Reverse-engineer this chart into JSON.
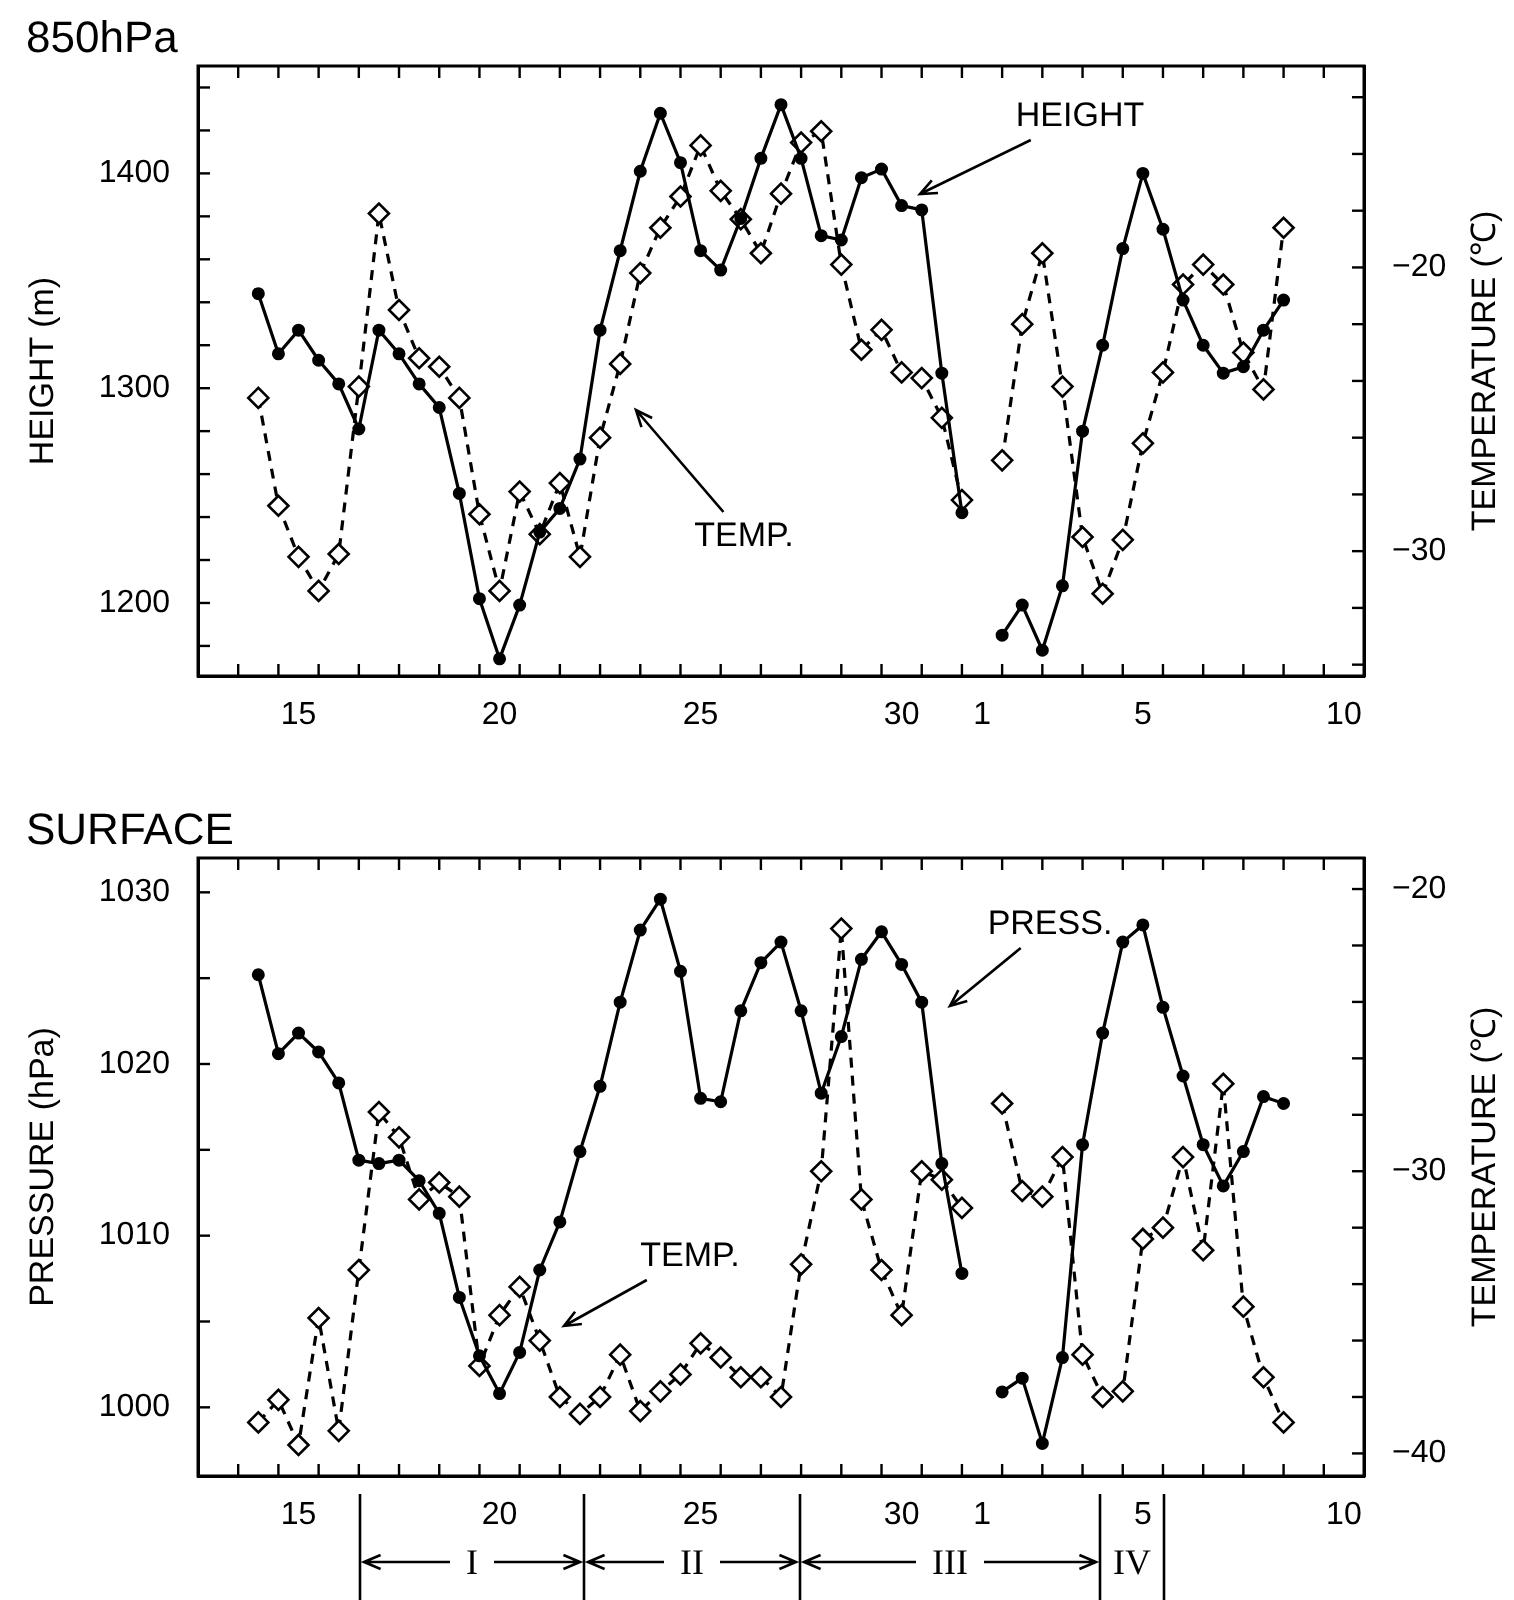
{
  "chart_data": [
    {
      "type": "line",
      "title": "850hPa",
      "ylabel": "HEIGHT (m)",
      "y2label": "TEMPERATURE (℃)",
      "x": [
        "--03-14T12:00",
        "--03-15T00:00",
        "--03-15T12:00",
        "--03-16T00:00",
        "--03-16T12:00",
        "--03-17T00:00",
        "--03-17T12:00",
        "--03-18T00:00",
        "--03-18T12:00",
        "--03-19T00:00",
        "--03-19T12:00",
        "--03-20T00:00",
        "--03-20T12:00",
        "--03-21T00:00",
        "--03-21T12:00",
        "--03-22T00:00",
        "--03-22T12:00",
        "--03-23T00:00",
        "--03-23T12:00",
        "--03-24T00:00",
        "--03-24T12:00",
        "--03-25T00:00",
        "--03-25T12:00",
        "--03-26T00:00",
        "--03-26T12:00",
        "--03-27T00:00",
        "--03-27T12:00",
        "--03-28T00:00",
        "--03-28T12:00",
        "--03-29T00:00",
        "--03-29T12:00",
        "--03-30T00:00",
        "--03-30T12:00",
        "--03-31T00:00",
        "--03-31T12:00",
        "--04-01T00:00",
        "--04-01T12:00",
        "--04-02T00:00",
        "--04-02T12:00",
        "--04-03T00:00",
        "--04-03T12:00",
        "--04-04T00:00",
        "--04-04T12:00",
        "--04-05T00:00",
        "--04-05T12:00",
        "--04-06T00:00",
        "--04-06T12:00",
        "--04-07T00:00",
        "--04-07T12:00",
        "--04-08T00:00",
        "--04-08T12:00",
        "--04-09T00:00"
      ],
      "series": [
        {
          "color": "#000000",
          "marker": "circle",
          "line_style": "solid",
          "values": [
            1344,
            1316,
            1327,
            1313,
            1302,
            1281,
            1327,
            1316,
            1302,
            1291,
            1251,
            1202,
            1174,
            1199,
            1233,
            1244,
            1267,
            1327,
            1364,
            1401,
            1428,
            1405,
            1364,
            1355,
            1379,
            1407,
            1432,
            1407,
            1371,
            1369,
            1398,
            1402,
            1385,
            1383,
            1307,
            1242,
            null,
            1185,
            1199,
            1178,
            1208,
            1280,
            1320,
            1365,
            1400,
            1374,
            1341,
            1320,
            1307,
            1310,
            1327,
            1341
          ]
        },
        {
          "color": "#000000",
          "marker": "diamond",
          "line_style": "dashed",
          "axis": "y2",
          "values": [
            -24.6,
            -28.4,
            -30.2,
            -31.4,
            -30.1,
            -24.2,
            -18.1,
            -21.5,
            -23.2,
            -23.5,
            -24.6,
            -28.7,
            -31.4,
            -27.9,
            -29.4,
            -27.6,
            -30.2,
            -26.0,
            -23.4,
            -20.2,
            -18.6,
            -17.5,
            -15.7,
            -17.3,
            -18.3,
            -19.5,
            -17.4,
            -15.6,
            -15.2,
            -19.9,
            -22.9,
            -22.2,
            -23.7,
            -23.9,
            -25.3,
            -28.2,
            null,
            -26.8,
            -22.0,
            -19.5,
            -24.2,
            -29.5,
            -31.5,
            -29.6,
            -26.2,
            -23.7,
            -20.6,
            -19.9,
            -20.6,
            -23.0,
            -24.3,
            -18.6
          ]
        }
      ],
      "xlim": [
        "--03-13T00:00",
        "--04-11T00:00"
      ],
      "xticks": [
        {
          "value": "--03-15T12:00",
          "label": "15"
        },
        {
          "value": "--03-20T12:00",
          "label": "20"
        },
        {
          "value": "--03-25T12:00",
          "label": "25"
        },
        {
          "value": "--03-30T12:00",
          "label": "30"
        },
        {
          "value": "--04-01T12:00",
          "label": "1"
        },
        {
          "value": "--04-05T12:00",
          "label": "5"
        },
        {
          "value": "--04-10T12:00",
          "label": "10"
        },
        {
          "value": "--03-14T00:00",
          "label": null
        },
        {
          "value": "--03-15T00:00",
          "label": null
        },
        {
          "value": "--03-16T00:00",
          "label": null
        },
        {
          "value": "--03-17T00:00",
          "label": null
        },
        {
          "value": "--03-18T00:00",
          "label": null
        },
        {
          "value": "--03-19T00:00",
          "label": null
        },
        {
          "value": "--03-20T00:00",
          "label": null
        },
        {
          "value": "--03-21T00:00",
          "label": null
        },
        {
          "value": "--03-22T00:00",
          "label": null
        },
        {
          "value": "--03-23T00:00",
          "label": null
        },
        {
          "value": "--03-24T00:00",
          "label": null
        },
        {
          "value": "--03-25T00:00",
          "label": null
        },
        {
          "value": "--03-26T00:00",
          "label": null
        },
        {
          "value": "--03-27T00:00",
          "label": null
        },
        {
          "value": "--03-28T00:00",
          "label": null
        },
        {
          "value": "--03-29T00:00",
          "label": null
        },
        {
          "value": "--03-30T00:00",
          "label": null
        },
        {
          "value": "--03-31T00:00",
          "label": null
        },
        {
          "value": "--04-01T00:00",
          "label": null
        },
        {
          "value": "--04-02T00:00",
          "label": null
        },
        {
          "value": "--04-03T00:00",
          "label": null
        },
        {
          "value": "--04-04T00:00",
          "label": null
        },
        {
          "value": "--04-05T00:00",
          "label": null
        },
        {
          "value": "--04-06T00:00",
          "label": null
        },
        {
          "value": "--04-07T00:00",
          "label": null
        },
        {
          "value": "--04-08T00:00",
          "label": null
        },
        {
          "value": "--04-09T00:00",
          "label": null
        },
        {
          "value": "--04-10T00:00",
          "label": null
        }
      ],
      "ylim": [
        1166,
        1450
      ],
      "yticks": [
        {
          "value": 1180,
          "label": null
        },
        1200,
        {
          "value": 1220,
          "label": null
        },
        {
          "value": 1240,
          "label": null
        },
        {
          "value": 1260,
          "label": null
        },
        {
          "value": 1280,
          "label": null
        },
        1300,
        {
          "value": 1320,
          "label": null
        },
        {
          "value": 1340,
          "label": null
        },
        {
          "value": 1360,
          "label": null
        },
        {
          "value": 1380,
          "label": null
        },
        1400,
        {
          "value": 1420,
          "label": null
        },
        {
          "value": 1440,
          "label": null
        }
      ],
      "y2lim": [
        -34.4,
        -12.9
      ],
      "y2ticks": [
        {
          "value": -34,
          "label": null
        },
        {
          "value": -32,
          "label": null
        },
        {
          "value": -30,
          "label": "−30"
        },
        {
          "value": -28,
          "label": null
        },
        {
          "value": -26,
          "label": null
        },
        {
          "value": -24,
          "label": null
        },
        {
          "value": -22,
          "label": null
        },
        {
          "value": -20,
          "label": "−20"
        },
        {
          "value": -18,
          "label": null
        },
        {
          "value": -16,
          "label": null
        },
        {
          "value": -14,
          "label": null
        }
      ],
      "annotations": [
        "HEIGHT",
        "TEMP."
      ]
    },
    {
      "type": "line",
      "title": "SURFACE",
      "ylabel": "PRESSURE (hPa)",
      "y2label": "TEMPERATURE (℃)",
      "x": [
        "--03-14T12:00",
        "--03-15T00:00",
        "--03-15T12:00",
        "--03-16T00:00",
        "--03-16T12:00",
        "--03-17T00:00",
        "--03-17T12:00",
        "--03-18T00:00",
        "--03-18T12:00",
        "--03-19T00:00",
        "--03-19T12:00",
        "--03-20T00:00",
        "--03-20T12:00",
        "--03-21T00:00",
        "--03-21T12:00",
        "--03-22T00:00",
        "--03-22T12:00",
        "--03-23T00:00",
        "--03-23T12:00",
        "--03-24T00:00",
        "--03-24T12:00",
        "--03-25T00:00",
        "--03-25T12:00",
        "--03-26T00:00",
        "--03-26T12:00",
        "--03-27T00:00",
        "--03-27T12:00",
        "--03-28T00:00",
        "--03-28T12:00",
        "--03-29T00:00",
        "--03-29T12:00",
        "--03-30T00:00",
        "--03-30T12:00",
        "--03-31T00:00",
        "--03-31T12:00",
        "--04-01T00:00",
        "--04-01T12:00",
        "--04-02T00:00",
        "--04-02T12:00",
        "--04-03T00:00",
        "--04-03T12:00",
        "--04-04T00:00",
        "--04-04T12:00",
        "--04-05T00:00",
        "--04-05T12:00",
        "--04-06T00:00",
        "--04-06T12:00",
        "--04-07T00:00",
        "--04-07T12:00",
        "--04-08T00:00",
        "--04-08T12:00",
        "--04-09T00:00"
      ],
      "series": [
        {
          "color": "#000000",
          "marker": "circle",
          "line_style": "solid",
          "values": [
            1025.2,
            1020.6,
            1021.8,
            1020.7,
            1018.9,
            1014.4,
            1014.2,
            1014.4,
            1013.2,
            1011.3,
            1006.4,
            1003.0,
            1000.8,
            1003.2,
            1008.0,
            1010.8,
            1014.9,
            1018.7,
            1023.6,
            1027.8,
            1029.6,
            1025.4,
            1018.0,
            1017.8,
            1023.1,
            1025.9,
            1027.1,
            1023.1,
            1018.3,
            1021.6,
            1026.1,
            1027.7,
            1025.8,
            1023.6,
            1014.2,
            1007.8,
            null,
            1000.9,
            1001.7,
            997.9,
            1002.9,
            1015.3,
            1021.8,
            1027.1,
            1028.1,
            1023.3,
            1019.3,
            1015.3,
            1012.9,
            1014.9,
            1018.1,
            1017.7
          ]
        },
        {
          "color": "#000000",
          "marker": "diamond",
          "line_style": "dashed",
          "axis": "y2",
          "values": [
            -38.9,
            -38.1,
            -39.7,
            -35.2,
            -39.2,
            -33.5,
            -27.9,
            -28.8,
            -31.0,
            -30.4,
            -30.9,
            -36.9,
            -35.1,
            -34.1,
            -36.0,
            -38.0,
            -38.6,
            -38.0,
            -36.5,
            -38.5,
            -37.8,
            -37.2,
            -36.1,
            -36.6,
            -37.3,
            -37.3,
            -38.0,
            -33.3,
            -30.0,
            -21.4,
            -31.0,
            -33.5,
            -35.1,
            -30.0,
            -30.3,
            -31.3,
            null,
            -27.6,
            -30.7,
            -30.9,
            -29.5,
            -36.5,
            -38.0,
            -37.8,
            -32.4,
            -32.0,
            -29.5,
            -32.8,
            -26.9,
            -34.8,
            -37.3,
            -38.9
          ]
        }
      ],
      "xlim": [
        "--03-13T00:00",
        "--04-11T00:00"
      ],
      "xticks": [
        {
          "value": "--03-15T12:00",
          "label": "15"
        },
        {
          "value": "--03-20T12:00",
          "label": "20"
        },
        {
          "value": "--03-25T12:00",
          "label": "25"
        },
        {
          "value": "--03-30T12:00",
          "label": "30"
        },
        {
          "value": "--04-01T12:00",
          "label": "1"
        },
        {
          "value": "--04-05T12:00",
          "label": "5"
        },
        {
          "value": "--04-10T12:00",
          "label": "10"
        },
        {
          "value": "--03-14T00:00",
          "label": null
        },
        {
          "value": "--03-15T00:00",
          "label": null
        },
        {
          "value": "--03-16T00:00",
          "label": null
        },
        {
          "value": "--03-17T00:00",
          "label": null
        },
        {
          "value": "--03-18T00:00",
          "label": null
        },
        {
          "value": "--03-19T00:00",
          "label": null
        },
        {
          "value": "--03-20T00:00",
          "label": null
        },
        {
          "value": "--03-21T00:00",
          "label": null
        },
        {
          "value": "--03-22T00:00",
          "label": null
        },
        {
          "value": "--03-23T00:00",
          "label": null
        },
        {
          "value": "--03-24T00:00",
          "label": null
        },
        {
          "value": "--03-25T00:00",
          "label": null
        },
        {
          "value": "--03-26T00:00",
          "label": null
        },
        {
          "value": "--03-27T00:00",
          "label": null
        },
        {
          "value": "--03-28T00:00",
          "label": null
        },
        {
          "value": "--03-29T00:00",
          "label": null
        },
        {
          "value": "--03-30T00:00",
          "label": null
        },
        {
          "value": "--03-31T00:00",
          "label": null
        },
        {
          "value": "--04-01T00:00",
          "label": null
        },
        {
          "value": "--04-02T00:00",
          "label": null
        },
        {
          "value": "--04-03T00:00",
          "label": null
        },
        {
          "value": "--04-04T00:00",
          "label": null
        },
        {
          "value": "--04-05T00:00",
          "label": null
        },
        {
          "value": "--04-06T00:00",
          "label": null
        },
        {
          "value": "--04-07T00:00",
          "label": null
        },
        {
          "value": "--04-08T00:00",
          "label": null
        },
        {
          "value": "--04-09T00:00",
          "label": null
        },
        {
          "value": "--04-10T00:00",
          "label": null
        }
      ],
      "ylim": [
        996,
        1032
      ],
      "yticks": [
        1000,
        {
          "value": 1005,
          "label": null
        },
        1010,
        {
          "value": 1015,
          "label": null
        },
        1020,
        {
          "value": 1025,
          "label": null
        },
        1030
      ],
      "y2lim": [
        -40.8,
        -18.9
      ],
      "y2ticks": [
        {
          "value": -40,
          "label": "−40"
        },
        {
          "value": -38,
          "label": null
        },
        {
          "value": -36,
          "label": null
        },
        {
          "value": -34,
          "label": null
        },
        {
          "value": -32,
          "label": null
        },
        {
          "value": -30,
          "label": "−30"
        },
        {
          "value": -28,
          "label": null
        },
        {
          "value": -26,
          "label": null
        },
        {
          "value": -24,
          "label": null
        },
        {
          "value": -22,
          "label": null
        },
        {
          "value": -20,
          "label": "−20"
        }
      ],
      "annotations": [
        "PRESS.",
        "TEMP.",
        "I",
        "II",
        "III",
        "IV"
      ]
    }
  ]
}
